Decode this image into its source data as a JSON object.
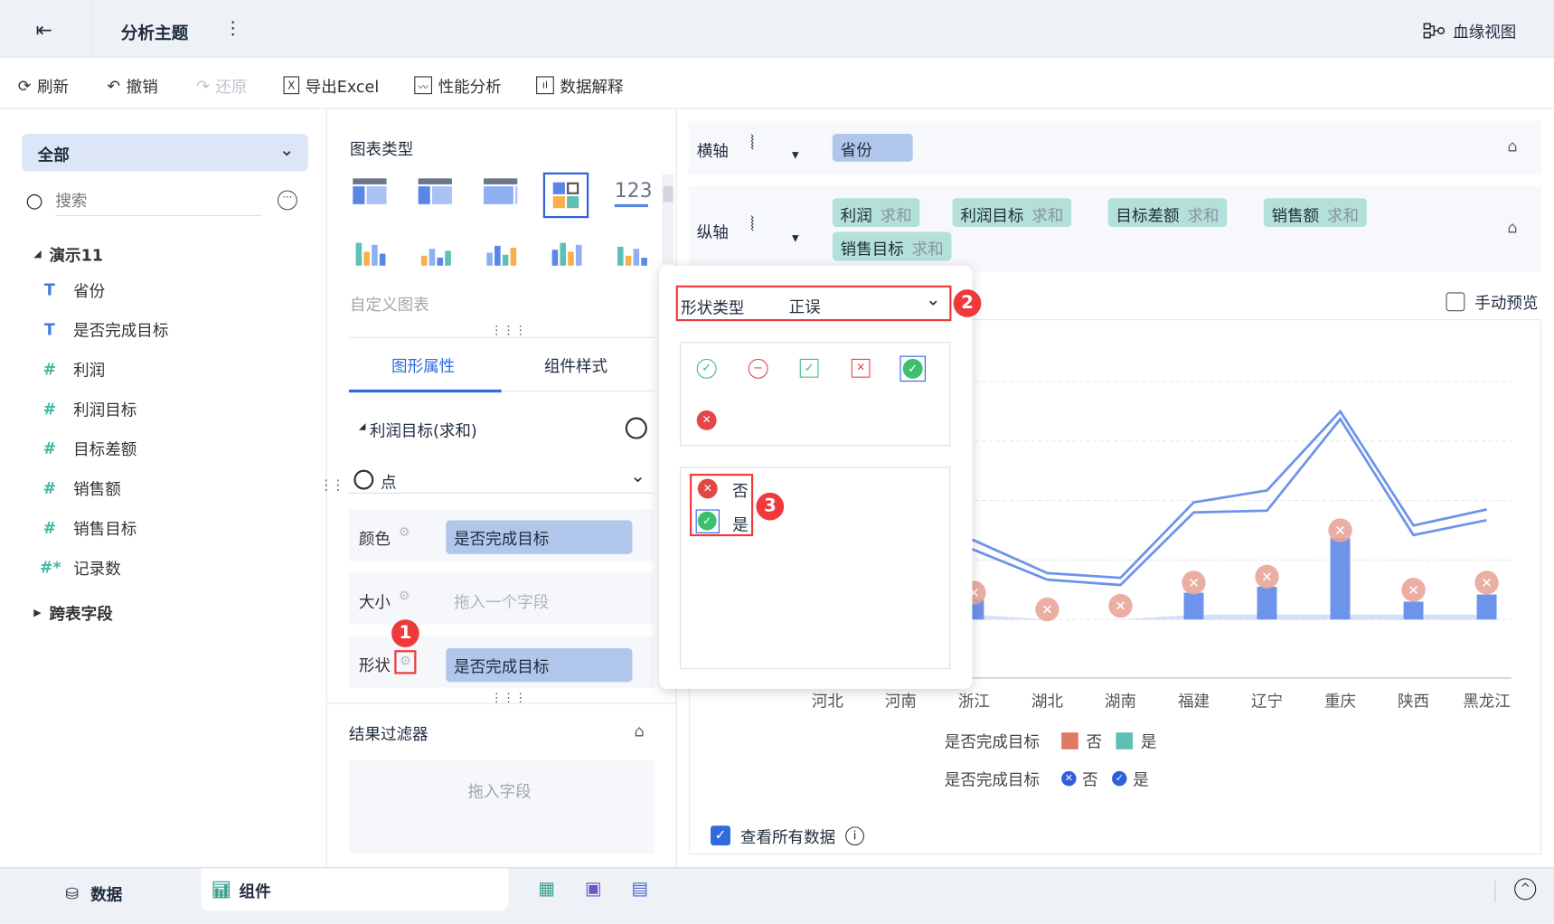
{
  "header": {
    "title": "分析主题",
    "more": "⋮",
    "lineage_label": "血缘视图"
  },
  "toolbar": {
    "refresh": "刷新",
    "undo": "撤销",
    "redo": "还原",
    "export_excel": "导出Excel",
    "performance": "性能分析",
    "explain": "数据解释"
  },
  "left": {
    "scope": "全部",
    "search_placeholder": "搜索",
    "dataset": "演示11",
    "fields": [
      {
        "type": "T",
        "label": "省份"
      },
      {
        "type": "T",
        "label": "是否完成目标"
      },
      {
        "type": "#",
        "label": "利润"
      },
      {
        "type": "#",
        "label": "利润目标"
      },
      {
        "type": "#",
        "label": "目标差额"
      },
      {
        "type": "#",
        "label": "销售额"
      },
      {
        "type": "#",
        "label": "销售目标"
      },
      {
        "type": "#*",
        "label": "记录数"
      }
    ],
    "cross_table": "跨表字段"
  },
  "mid": {
    "chart_type_title": "图表类型",
    "custom_chart": "自定义图表",
    "tabs": [
      "图形属性",
      "组件样式"
    ],
    "series_title": "利润目标(求和)",
    "mark_type": "点",
    "color_label": "颜色",
    "color_field": "是否完成目标",
    "size_label": "大小",
    "size_placeholder": "拖入一个字段",
    "shape_label": "形状",
    "shape_field": "是否完成目标",
    "filter_title": "结果过滤器",
    "filter_placeholder": "拖入字段",
    "badge1": "1"
  },
  "axes": {
    "x_label": "横轴",
    "x_fields": [
      "省份"
    ],
    "y_label": "纵轴",
    "y_fields": [
      {
        "name": "利润",
        "agg": "求和"
      },
      {
        "name": "利润目标",
        "agg": "求和"
      },
      {
        "name": "目标差额",
        "agg": "求和"
      },
      {
        "name": "销售额",
        "agg": "求和"
      },
      {
        "name": "销售目标",
        "agg": "求和"
      }
    ],
    "manual_preview": "手动预览"
  },
  "popup": {
    "shape_type_label": "形状类型",
    "shape_type_value": "正误",
    "badge2": "2",
    "badge3": "3",
    "mapping": [
      {
        "label": "否",
        "shape": "red-filled-x"
      },
      {
        "label": "是",
        "shape": "green-filled-check"
      }
    ]
  },
  "chart": {
    "categories": [
      "河北",
      "河南",
      "浙江",
      "湖北",
      "湖南",
      "福建",
      "辽宁",
      "重庆",
      "陕西",
      "黑龙江"
    ],
    "line_upper": [
      2.0,
      1.6,
      1.33,
      0.78,
      0.7,
      1.97,
      2.17,
      3.5,
      1.58,
      1.85
    ],
    "line_lower": [
      1.85,
      1.45,
      1.17,
      0.67,
      0.58,
      1.8,
      1.83,
      3.37,
      1.42,
      1.67
    ],
    "bars": [
      0.3,
      0.2,
      0.33,
      0,
      0,
      0.45,
      0.55,
      1.37,
      0.3,
      0.42
    ],
    "markers": [
      0.5,
      0.4,
      0.45,
      0.17,
      0.23,
      0.62,
      0.72,
      1.5,
      0.5,
      0.62
    ],
    "legend_color_title": "是否完成目标",
    "legend_shape_title": "是否完成目标",
    "legend_items": [
      "否",
      "是"
    ],
    "colors": {
      "no": "#e07a66",
      "yes": "#5fbfb4",
      "line": "#6d93ea",
      "marker": "#e8a598",
      "shape": "#2f5fdb"
    }
  },
  "view_all": "查看所有数据",
  "bottom": {
    "data_tab": "数据",
    "component_tab": "组件"
  }
}
